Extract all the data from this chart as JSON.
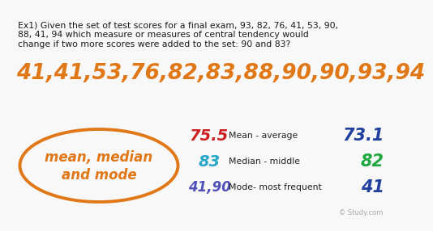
{
  "background_color": "#f8f8f8",
  "question_text_line1": "Ex1) Given the set of test scores for a final exam, 93, 82, 76, 41, 53, 90,",
  "question_text_line2": "88, 41, 94 which measure or measures of central tendency would",
  "question_text_line3": "change if two more scores were added to the set: 90 and 83?",
  "sorted_set": "41,41,53,76,82,83,88,90,90,93,94",
  "sorted_set_color": "#e07818",
  "oval_text_line1": "mean, median",
  "oval_text_line2": "and mode",
  "oval_color": "#e07818",
  "old_mean": "75.5",
  "old_median": "83",
  "old_mode": "41,90",
  "old_mean_color": "#cc2020",
  "old_median_color": "#28a8c8",
  "old_mode_color": "#5050b8",
  "label_mean": "Mean - average",
  "label_median": "Median - middle",
  "label_mode": "Mode- most frequent",
  "new_mean": "73.1",
  "new_median": "82",
  "new_mode": "41",
  "new_mean_color": "#2040a0",
  "new_median_color": "#20a840",
  "new_mode_color": "#2040a0",
  "watermark": "© Study.com",
  "question_fontsize": 7.8,
  "sorted_fontsize": 19,
  "oval_fontsize": 12,
  "label_fontsize": 7.8,
  "old_value_fontsize": 14,
  "new_value_fontsize": 15
}
